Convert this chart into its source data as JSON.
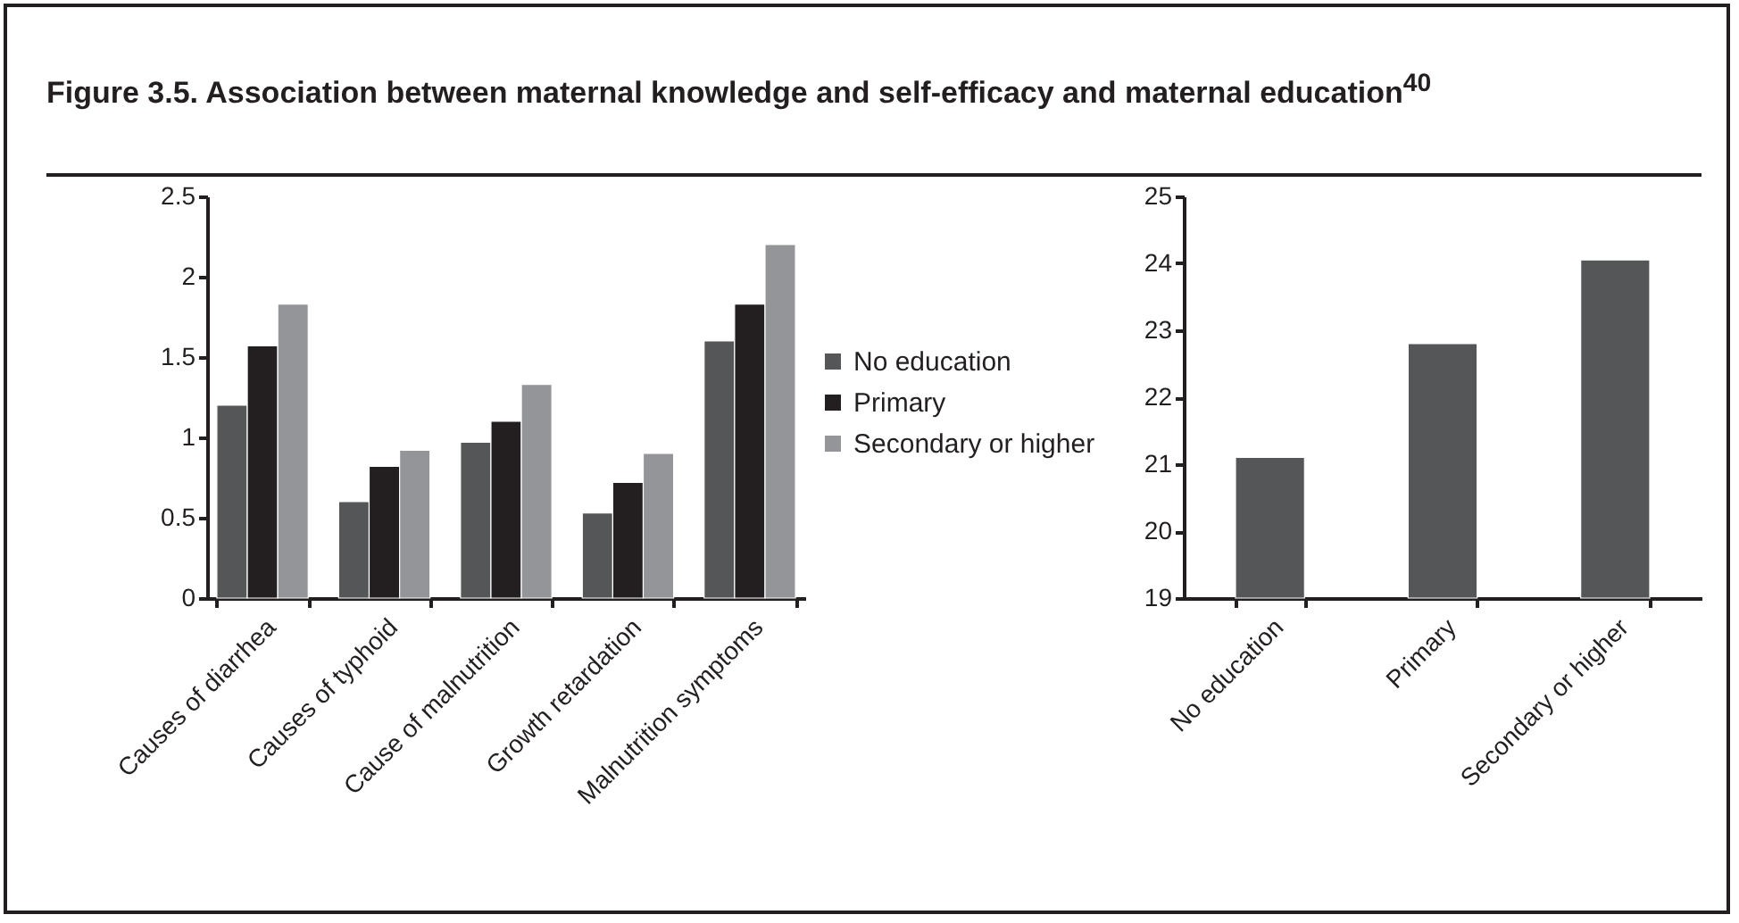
{
  "chart_data": [
    {
      "type": "bar",
      "title": "Figure 3.5. Association between maternal knowledge and self-efficacy and maternal education$^{40}$",
      "categories": [
        "Causes of diarrhea",
        "Causes of typhoid",
        "Cause of malnutrition",
        "Growth retardation",
        "Malnutrition symptoms"
      ],
      "series": [
        {
          "name": "No education",
          "color": "#555658",
          "values": [
            1.2,
            0.6,
            0.97,
            0.53,
            1.6
          ]
        },
        {
          "name": "Primary",
          "color": "#231f20",
          "values": [
            1.57,
            0.82,
            1.1,
            0.72,
            1.83
          ]
        },
        {
          "name": "Secondary or higher",
          "color": "#939598",
          "values": [
            1.83,
            0.92,
            1.33,
            0.9,
            2.2
          ]
        }
      ],
      "ylim": [
        0,
        2.5
      ],
      "yticks": [
        0,
        {
          "value": 0.5,
          "label": "0.5"
        },
        1,
        {
          "value": 1.5,
          "label": "1.5"
        },
        2,
        {
          "value": 2.5,
          "label": "2.5"
        }
      ],
      "grid": false,
      "legend": "right"
    },
    {
      "type": "bar",
      "categories": [
        "No education",
        "Primary",
        "Secondary or higher"
      ],
      "values": [
        21.1,
        22.8,
        24.05
      ],
      "color": "#555658",
      "ylim": [
        19,
        25
      ],
      "yticks": [
        19,
        20,
        21,
        22,
        23,
        24,
        25
      ],
      "grid": false
    }
  ]
}
